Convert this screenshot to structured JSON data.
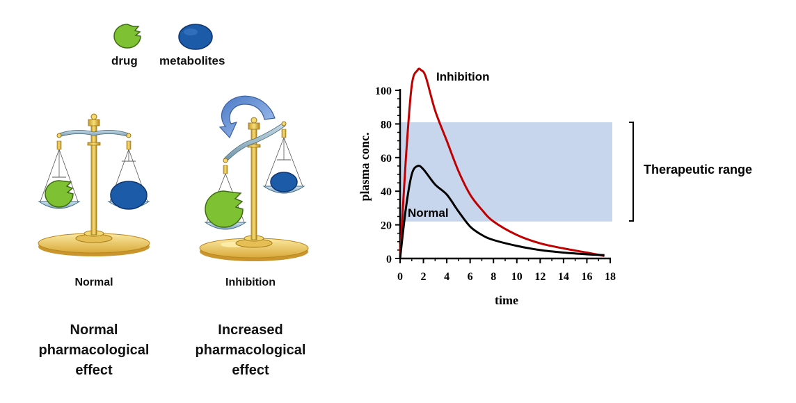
{
  "legend": {
    "drug_label": "drug",
    "metabolites_label": "metabolites",
    "drug_color": "#7ec234",
    "metabolite_color": "#1c5ba8"
  },
  "scales": {
    "normal_label": "Normal",
    "inhibition_label": "Inhibition",
    "normal_effect": [
      "Normal",
      "pharmacological",
      "effect"
    ],
    "inhibition_effect": [
      "Increased",
      "pharmacological",
      "effect"
    ]
  },
  "chart_data": {
    "type": "line",
    "xlabel": "time",
    "ylabel": "plasma  conc.",
    "xlim": [
      0,
      18
    ],
    "ylim": [
      0,
      100
    ],
    "x_ticks": [
      0,
      2,
      4,
      6,
      8,
      10,
      12,
      14,
      16,
      18
    ],
    "y_ticks": [
      0,
      20,
      40,
      60,
      80,
      100
    ],
    "therapeutic_range": {
      "label": "Therapeutic range",
      "low": 22,
      "high": 81,
      "color": "#c7d6ed"
    },
    "series": [
      {
        "name": "Inhibition",
        "color": "#c00000",
        "x": [
          0,
          0.5,
          1,
          1.5,
          1.8,
          2.2,
          3,
          4,
          5,
          6,
          7,
          8,
          10,
          12,
          14,
          16,
          17.5
        ],
        "y": [
          0,
          60,
          103,
          112,
          112,
          108,
          88,
          70,
          52,
          38,
          29,
          22,
          14,
          9,
          6,
          3.5,
          1.5
        ]
      },
      {
        "name": "Normal",
        "color": "#000000",
        "x": [
          0,
          0.5,
          1,
          1.5,
          2,
          3,
          4,
          5,
          6,
          7,
          8,
          10,
          12,
          14,
          16,
          17.5
        ],
        "y": [
          0,
          30,
          50,
          55,
          53,
          44,
          38,
          28,
          19,
          14,
          11,
          7.5,
          5,
          3.5,
          2.5,
          2
        ]
      }
    ]
  }
}
